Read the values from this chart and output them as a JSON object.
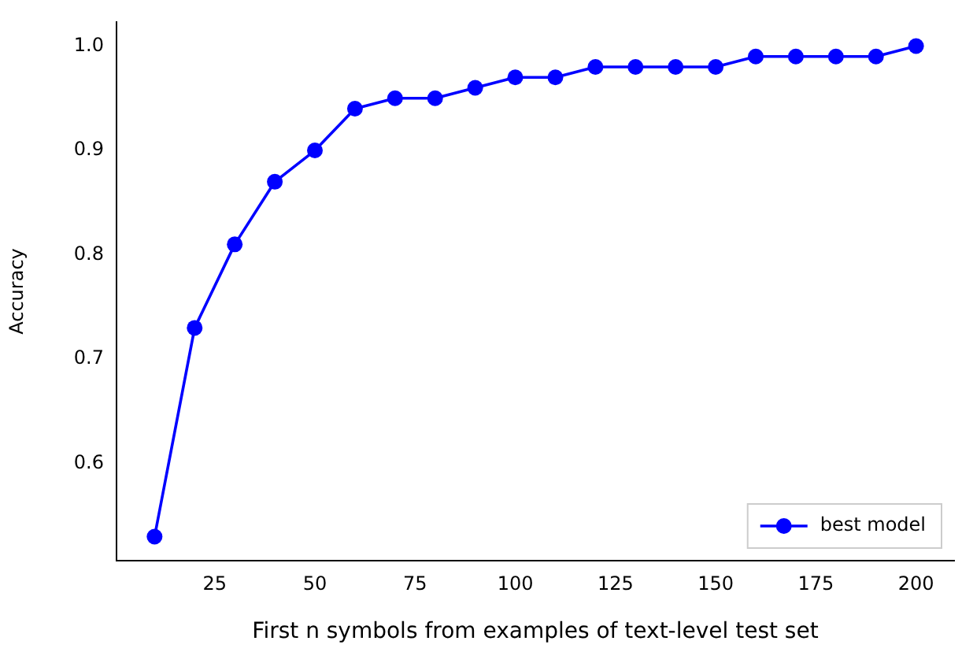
{
  "chart_data": {
    "type": "line",
    "xlabel": "First n symbols from examples of text-level test set",
    "ylabel": "Accuracy",
    "x": [
      10,
      20,
      30,
      40,
      50,
      60,
      70,
      80,
      90,
      100,
      110,
      120,
      130,
      140,
      150,
      160,
      170,
      180,
      190,
      200
    ],
    "series": [
      {
        "name": "best model",
        "color": "#0000ff",
        "values": [
          0.53,
          0.73,
          0.81,
          0.87,
          0.9,
          0.94,
          0.95,
          0.95,
          0.96,
          0.97,
          0.97,
          0.98,
          0.98,
          0.98,
          0.98,
          0.99,
          0.99,
          0.99,
          0.99,
          1.0
        ]
      }
    ],
    "xlim": [
      0.5,
      209.5
    ],
    "xticks": [
      25,
      50,
      75,
      100,
      125,
      150,
      175,
      200
    ],
    "ylim": [
      0.507,
      1.023
    ],
    "yticks": [
      {
        "value": 0.6,
        "label": "0.6"
      },
      {
        "value": 0.7,
        "label": "0.7"
      },
      {
        "value": 0.8,
        "label": "0.8"
      },
      {
        "value": 0.9,
        "label": "0.9"
      },
      {
        "value": 1.0,
        "label": "1.0"
      }
    ],
    "grid": false,
    "legend": "bottom right",
    "marker": "circle",
    "line_style": "solid"
  }
}
